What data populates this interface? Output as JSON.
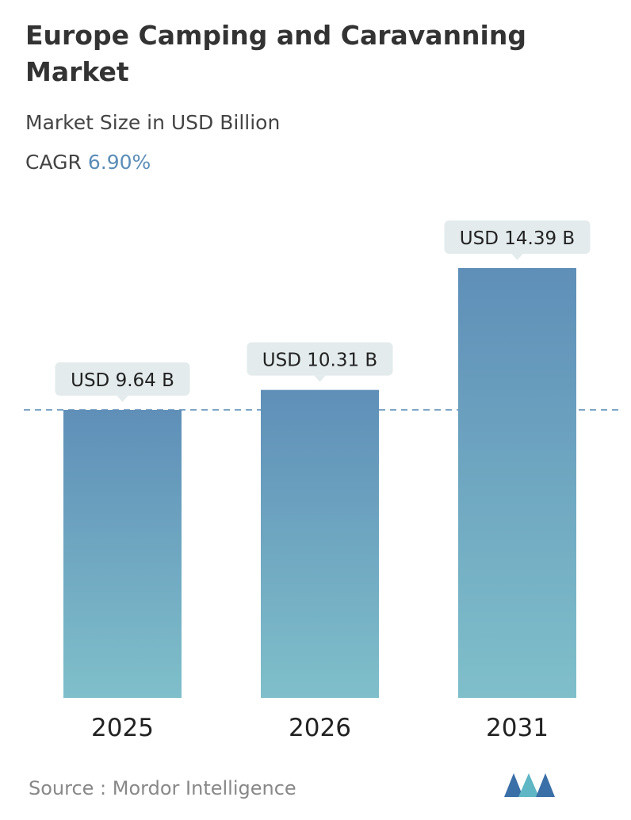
{
  "title": "Europe Camping and Caravanning Market",
  "subtitle": "Market Size in USD Billion",
  "cagr_label": "CAGR",
  "cagr_value": "6.90%",
  "source": "Source :  Mordor Intelligence",
  "colors": {
    "bar_top": "#5f8fb8",
    "bar_bottom": "#7fbfca",
    "label_bg": "#e3ebec",
    "accent": "#5b8db8"
  },
  "chart_data": {
    "type": "bar",
    "categories": [
      "2025",
      "2026",
      "2031"
    ],
    "values": [
      9.64,
      10.31,
      14.39
    ],
    "data_labels": [
      "USD 9.64 B",
      "USD 10.31 B",
      "USD 14.39 B"
    ],
    "reference_line": 9.64,
    "title": "Europe Camping and Caravanning Market",
    "ylabel": "Market Size in USD Billion",
    "grid": false
  }
}
